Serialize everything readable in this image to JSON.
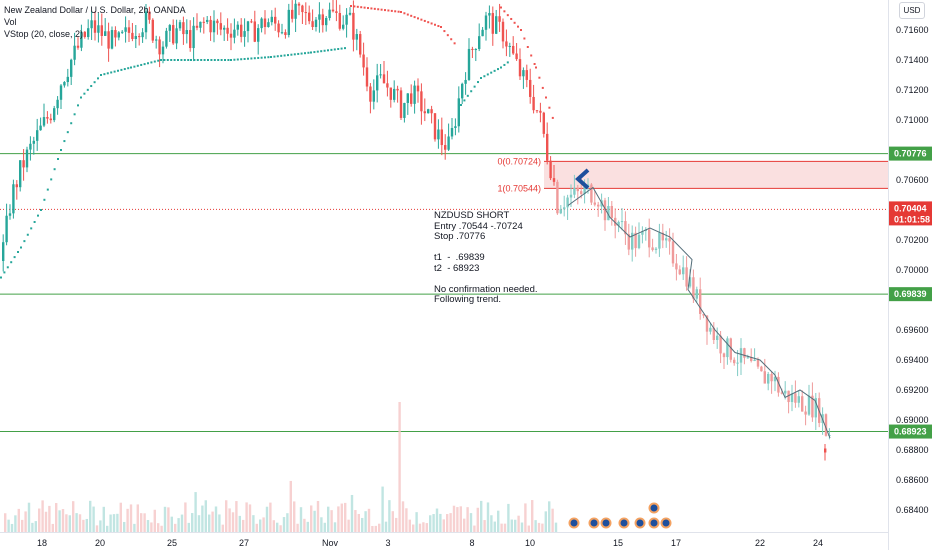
{
  "legend": {
    "symbol": "New Zealand Dollar / U.S. Dollar, 2h, OANDA",
    "volume": "Vol",
    "indicator": "VStop (20, close, 2)"
  },
  "currency": "USD",
  "note": {
    "lines": [
      "NZDUSD SHORT",
      "Entry .70544 -.70724",
      "Stop .70776",
      "",
      "t1  -  .69839",
      "t2  - 68923",
      "",
      "No confirmation needed.",
      "Following trend."
    ]
  },
  "colors": {
    "up": "#26a69a",
    "down": "#ef5350",
    "level_line": "#43a047",
    "current_price": "#e53935",
    "fib": "#e53935",
    "fib_zone": "#f8d6d6",
    "arrow": "#1e4f9c",
    "projection": "#546e7a"
  },
  "chart_data": {
    "type": "candlestick",
    "title": "New Zealand Dollar / U.S. Dollar, 2h, OANDA",
    "ylim": [
      0.6835,
      0.7175
    ],
    "y_ticks": [
      0.716,
      0.714,
      0.712,
      0.71,
      0.706,
      0.704,
      0.702,
      0.7,
      0.696,
      0.694,
      0.692,
      0.69,
      0.688,
      0.686,
      0.684
    ],
    "y_tick_labels": [
      "0.71600",
      "0.71400",
      "0.71200",
      "0.71000",
      "0.70600",
      "0.70400",
      "0.70200",
      "0.70000",
      "0.69600",
      "0.69400",
      "0.69200",
      "0.69000",
      "0.68800",
      "0.68600",
      "0.68400"
    ],
    "x_tick_labels": [
      "18",
      "20",
      "25",
      "27",
      "Nov",
      "3",
      "8",
      "10",
      "15",
      "17",
      "22",
      "24"
    ],
    "price_path": [
      [
        0,
        0.7006
      ],
      [
        10,
        0.7048
      ],
      [
        20,
        0.7068
      ],
      [
        30,
        0.7082
      ],
      [
        40,
        0.7094
      ],
      [
        50,
        0.7106
      ],
      [
        60,
        0.7126
      ],
      [
        70,
        0.714
      ],
      [
        80,
        0.7152
      ],
      [
        90,
        0.7162
      ],
      [
        100,
        0.7158
      ],
      [
        115,
        0.715
      ],
      [
        130,
        0.716
      ],
      [
        145,
        0.7166
      ],
      [
        160,
        0.715
      ],
      [
        175,
        0.716
      ],
      [
        190,
        0.7154
      ],
      [
        205,
        0.7166
      ],
      [
        220,
        0.716
      ],
      [
        235,
        0.7162
      ],
      [
        250,
        0.7158
      ],
      [
        265,
        0.7166
      ],
      [
        280,
        0.7162
      ],
      [
        295,
        0.717
      ],
      [
        310,
        0.7168
      ],
      [
        325,
        0.7172
      ],
      [
        340,
        0.7168
      ],
      [
        350,
        0.7165
      ],
      [
        360,
        0.7142
      ],
      [
        370,
        0.7118
      ],
      [
        380,
        0.7126
      ],
      [
        390,
        0.712
      ],
      [
        400,
        0.7108
      ],
      [
        410,
        0.7118
      ],
      [
        420,
        0.711
      ],
      [
        430,
        0.7098
      ],
      [
        440,
        0.7086
      ],
      [
        448,
        0.7082
      ],
      [
        455,
        0.7104
      ],
      [
        462,
        0.713
      ],
      [
        470,
        0.7145
      ],
      [
        478,
        0.716
      ],
      [
        486,
        0.7168
      ],
      [
        494,
        0.7162
      ],
      [
        502,
        0.7158
      ],
      [
        510,
        0.7145
      ],
      [
        518,
        0.7132
      ],
      [
        526,
        0.7122
      ],
      [
        534,
        0.711
      ],
      [
        540,
        0.7098
      ],
      [
        546,
        0.7078
      ],
      [
        552,
        0.7062
      ],
      [
        556,
        0.7044
      ],
      [
        566,
        0.7048
      ],
      [
        576,
        0.705
      ],
      [
        586,
        0.7053
      ],
      [
        596,
        0.705
      ],
      [
        606,
        0.7036
      ],
      [
        616,
        0.7034
      ],
      [
        626,
        0.7022
      ],
      [
        636,
        0.7018
      ],
      [
        646,
        0.7024
      ],
      [
        656,
        0.7018
      ],
      [
        666,
        0.7014
      ],
      [
        676,
        0.7006
      ],
      [
        686,
        0.6996
      ],
      [
        692,
        0.6985
      ],
      [
        700,
        0.6975
      ],
      [
        710,
        0.696
      ],
      [
        720,
        0.695
      ],
      [
        730,
        0.6945
      ],
      [
        740,
        0.694
      ],
      [
        750,
        0.6935
      ],
      [
        760,
        0.6928
      ],
      [
        770,
        0.693
      ],
      [
        780,
        0.6918
      ],
      [
        790,
        0.6915
      ],
      [
        800,
        0.6912
      ],
      [
        810,
        0.691
      ],
      [
        820,
        0.6905
      ],
      [
        825,
        0.6892
      ]
    ],
    "vstop_up": [
      [
        0,
        0.6995
      ],
      [
        20,
        0.7015
      ],
      [
        40,
        0.704
      ],
      [
        60,
        0.708
      ],
      [
        80,
        0.7115
      ],
      [
        100,
        0.713
      ],
      [
        130,
        0.7135
      ],
      [
        160,
        0.714
      ],
      [
        190,
        0.714
      ],
      [
        230,
        0.714
      ],
      [
        270,
        0.7142
      ],
      [
        310,
        0.7145
      ],
      [
        345,
        0.7148
      ]
    ],
    "vstop_down": [
      [
        350,
        0.7176
      ],
      [
        400,
        0.7172
      ],
      [
        440,
        0.7162
      ],
      [
        455,
        0.715
      ]
    ],
    "vstop_up2": [
      [
        460,
        0.711
      ],
      [
        480,
        0.7128
      ],
      [
        500,
        0.7135
      ],
      [
        510,
        0.714
      ]
    ],
    "vstop_down2": [
      [
        500,
        0.7175
      ],
      [
        520,
        0.716
      ],
      [
        535,
        0.7135
      ],
      [
        545,
        0.7115
      ],
      [
        555,
        0.7095
      ]
    ],
    "projection_path": [
      [
        568,
        0.7043
      ],
      [
        593,
        0.7055
      ],
      [
        610,
        0.7035
      ],
      [
        630,
        0.7022
      ],
      [
        650,
        0.7028
      ],
      [
        670,
        0.7022
      ],
      [
        692,
        0.7007
      ],
      [
        688,
        0.6987
      ],
      [
        715,
        0.696
      ],
      [
        735,
        0.6945
      ],
      [
        760,
        0.694
      ],
      [
        775,
        0.693
      ],
      [
        785,
        0.6915
      ],
      [
        800,
        0.692
      ],
      [
        815,
        0.6913
      ],
      [
        830,
        0.6888
      ]
    ],
    "levels": [
      {
        "price": 0.70776,
        "label": "0.70776"
      },
      {
        "price": 0.69839,
        "label": "0.69839"
      },
      {
        "price": 0.68923,
        "label": "0.68923"
      }
    ],
    "current_price": {
      "price": 0.70404,
      "label": "0.70404",
      "countdown": "01:01:58"
    },
    "fib": {
      "level0": {
        "price": 0.70724,
        "label": "0(0.70724)"
      },
      "level1": {
        "price": 0.70544,
        "label": "1(0.70544)"
      }
    },
    "ellipsis_labels": [
      "—",
      "—",
      "—"
    ]
  }
}
